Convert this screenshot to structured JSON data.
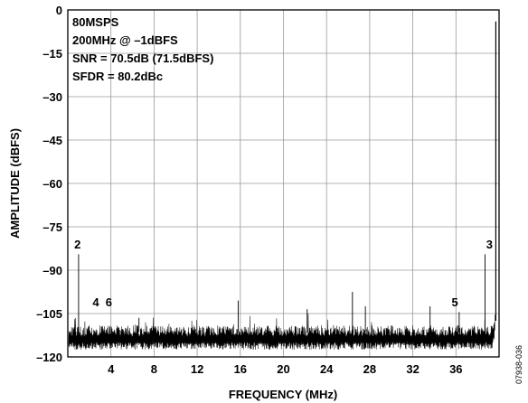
{
  "chart_data": {
    "type": "line",
    "title": "",
    "xlabel": "FREQUENCY (MHz)",
    "ylabel": "AMPLITUDE (dBFS)",
    "xlim": [
      0,
      40
    ],
    "ylim": [
      -120,
      0
    ],
    "x_ticks": [
      4,
      8,
      12,
      16,
      20,
      24,
      28,
      32,
      36
    ],
    "y_ticks": [
      0,
      -15,
      -30,
      -45,
      -60,
      -75,
      -90,
      -105,
      -120
    ],
    "x_tick_labels": [
      "4",
      "8",
      "12",
      "16",
      "20",
      "24",
      "28",
      "32",
      "36"
    ],
    "y_tick_labels": [
      "0",
      "–15",
      "–30",
      "–45",
      "–60",
      "–75",
      "–90",
      "–105",
      "–120"
    ],
    "grid": true,
    "annotation_lines": [
      "80MSPS",
      "200MHz @ –1dBFS",
      "SNR = 70.5dB (71.5dBFS)",
      "SFDR = 80.2dBc"
    ],
    "fundamental": {
      "x": 39.7,
      "y": -4
    },
    "noise_floor": {
      "x_start": 0.0,
      "x_end": 39.3,
      "center": -113.5,
      "spread": 4.0
    },
    "spurs": [
      {
        "x": 1.0,
        "y": -84.5
      },
      {
        "x": 15.8,
        "y": -100.5
      },
      {
        "x": 26.4,
        "y": -97.5
      },
      {
        "x": 27.6,
        "y": -102.5
      },
      {
        "x": 22.2,
        "y": -103.5
      },
      {
        "x": 33.6,
        "y": -102.5
      },
      {
        "x": 6.6,
        "y": -106.5
      },
      {
        "x": 38.7,
        "y": -84.5
      },
      {
        "x": 36.3,
        "y": -104.5
      }
    ],
    "harmonic_labels": [
      {
        "label": "2",
        "x": 0.6,
        "y": -82.5
      },
      {
        "label": "4",
        "x": 2.3,
        "y": -102.5
      },
      {
        "label": "6",
        "x": 3.5,
        "y": -102.5
      },
      {
        "label": "5",
        "x": 35.6,
        "y": -102.5
      },
      {
        "label": "3",
        "x": 38.8,
        "y": -82.5
      }
    ]
  },
  "figure_id": "07938-036"
}
